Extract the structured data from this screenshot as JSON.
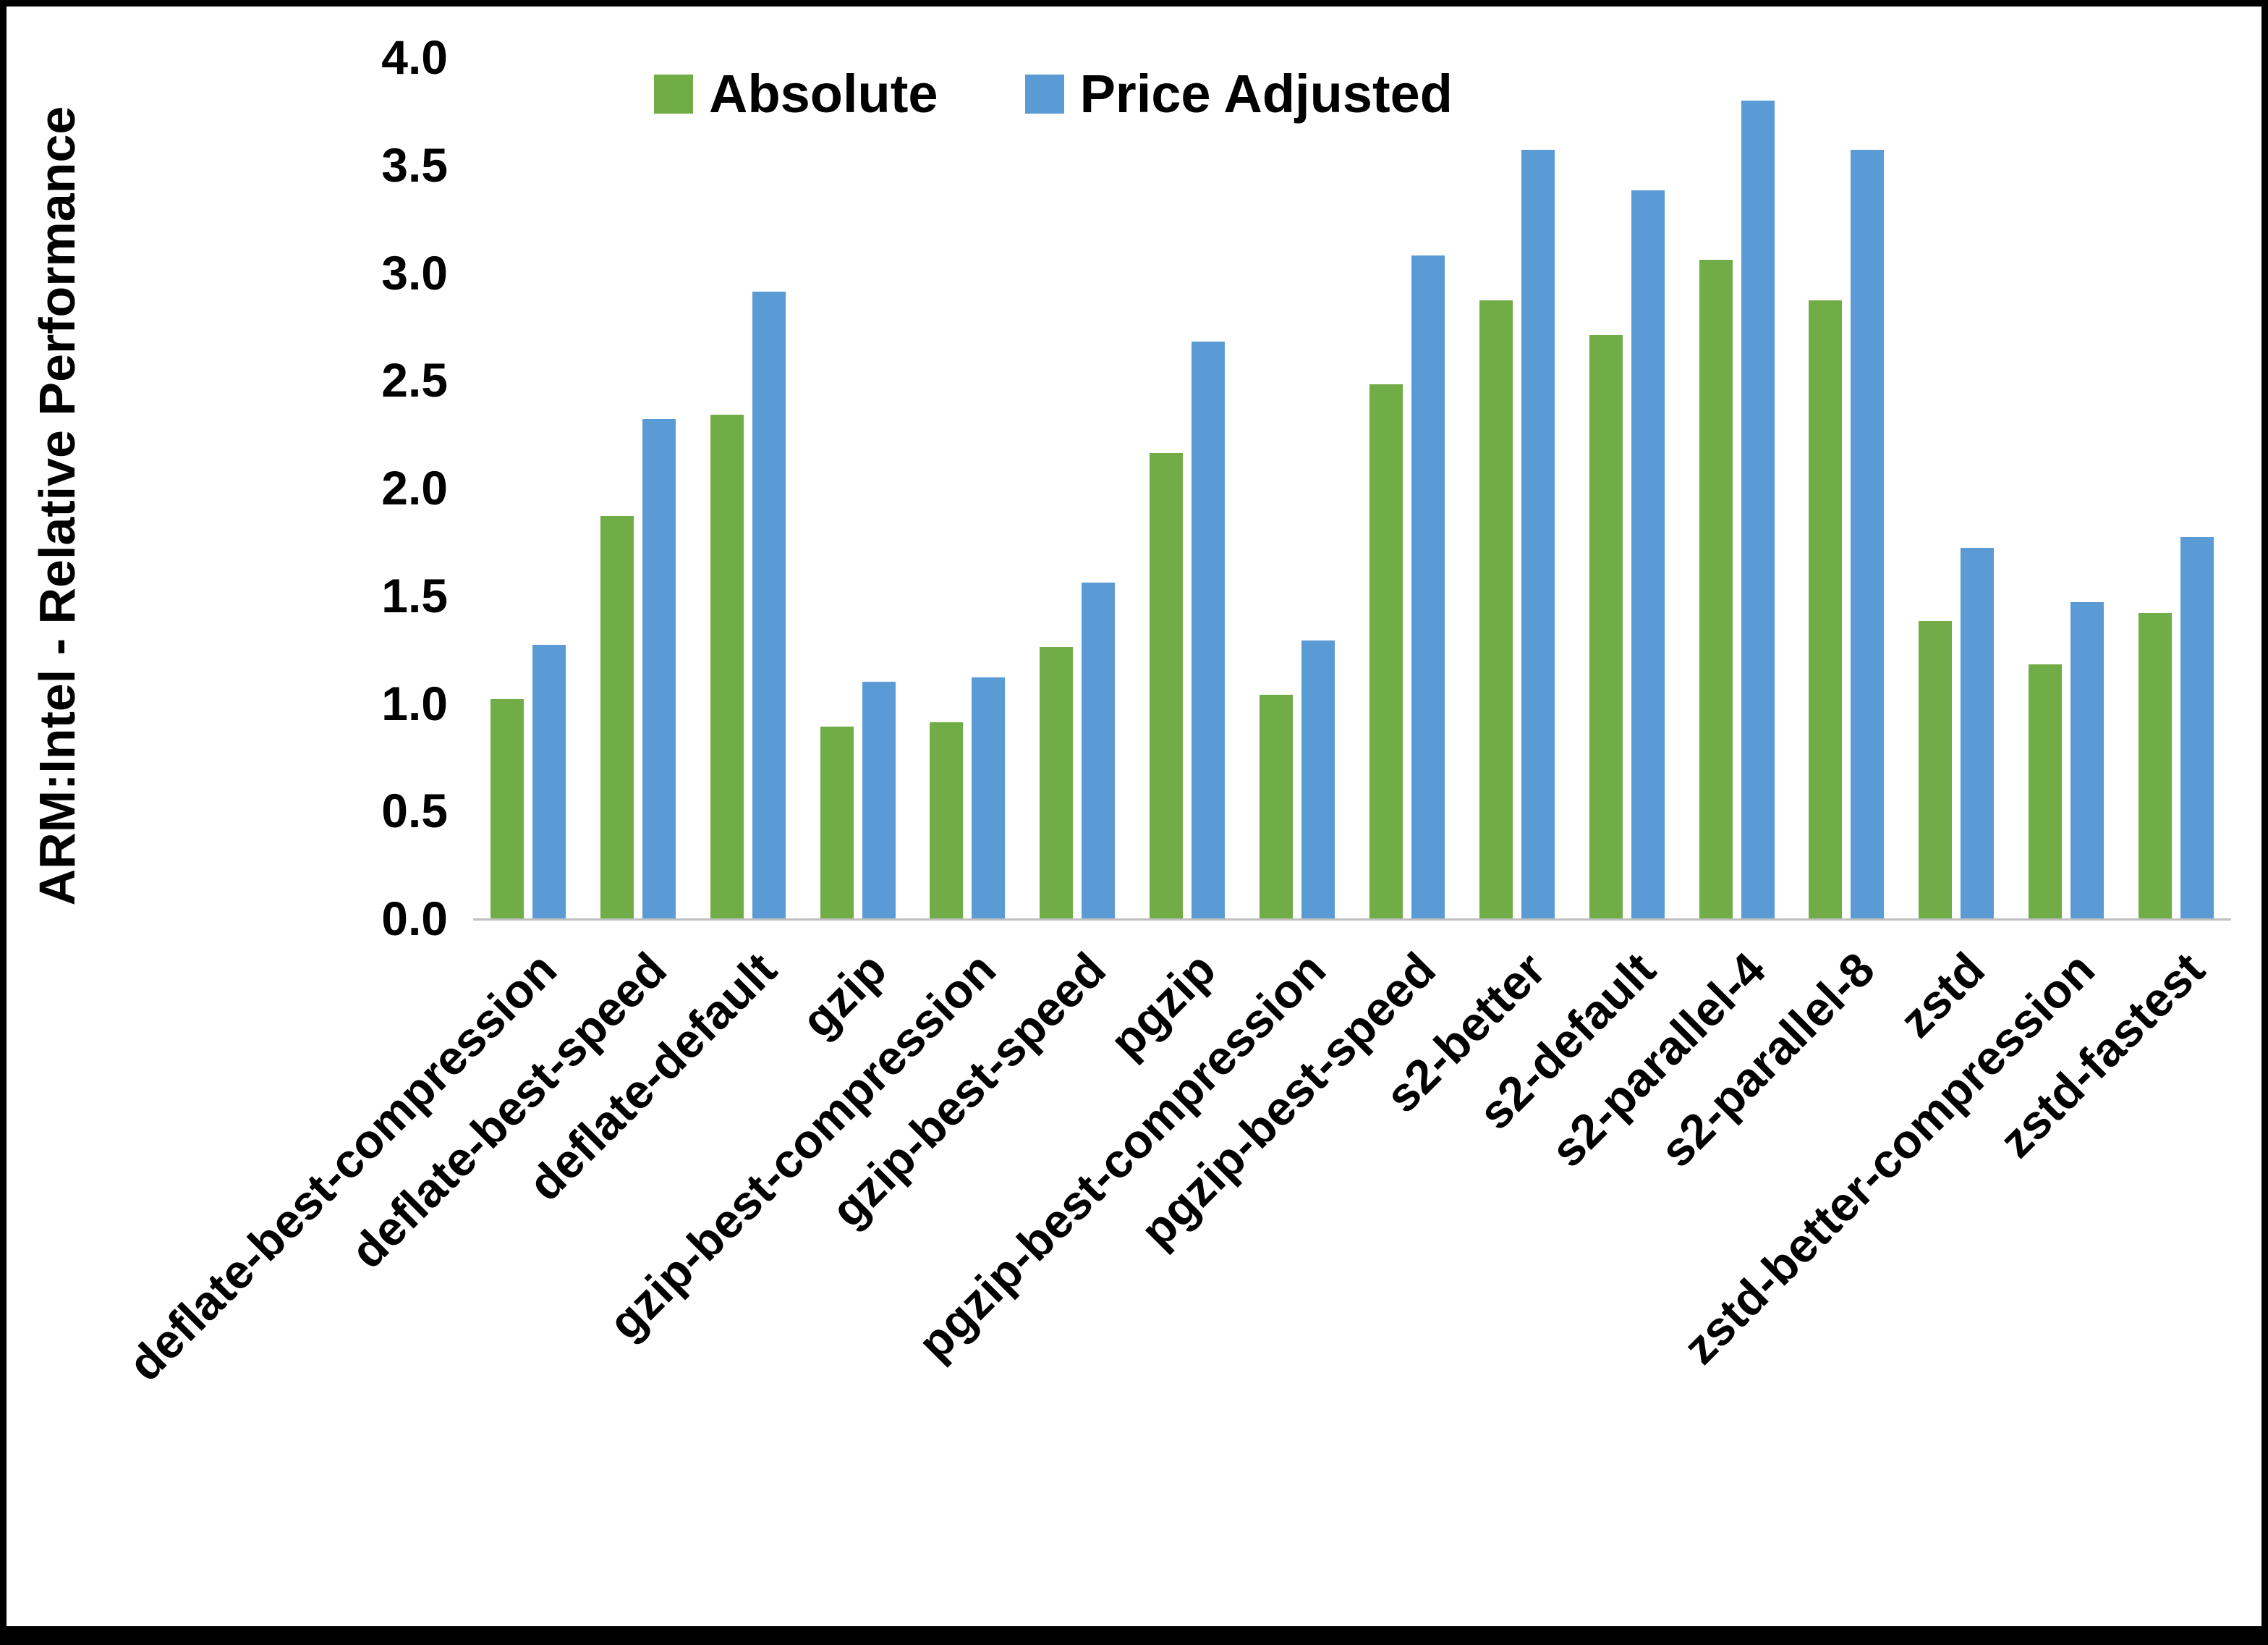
{
  "chart_data": {
    "type": "bar",
    "title": "",
    "xlabel": "",
    "ylabel": "ARM:Intel - Relative Performance",
    "ylim": [
      0,
      4
    ],
    "ytick_step": 0.5,
    "yticks": [
      "0.0",
      "0.5",
      "1.0",
      "1.5",
      "2.0",
      "2.5",
      "3.0",
      "3.5",
      "4.0"
    ],
    "grid": false,
    "legend_position": "top",
    "categories": [
      "deflate-best-compression",
      "deflate-best-speed",
      "deflate-default",
      "gzip",
      "gzip-best-compression",
      "gzip-best-speed",
      "pgzip",
      "pgzip-best-compression",
      "pgzip-best-speed",
      "s2-better",
      "s2-default",
      "s2-parallel-4",
      "s2-parallel-8",
      "zstd",
      "zstd-better-compression",
      "zstd-fastest"
    ],
    "series": [
      {
        "name": "Absolute",
        "color": "#70AD47",
        "values": [
          1.02,
          1.87,
          2.34,
          0.89,
          0.91,
          1.26,
          2.16,
          1.04,
          2.48,
          2.87,
          2.71,
          3.06,
          2.87,
          1.38,
          1.18,
          1.42
        ]
      },
      {
        "name": "Price Adjusted",
        "color": "#5B9BD5",
        "values": [
          1.27,
          2.32,
          2.91,
          1.1,
          1.12,
          1.56,
          2.68,
          1.29,
          3.08,
          3.57,
          3.38,
          3.8,
          3.57,
          1.72,
          1.47,
          1.77
        ]
      }
    ]
  }
}
